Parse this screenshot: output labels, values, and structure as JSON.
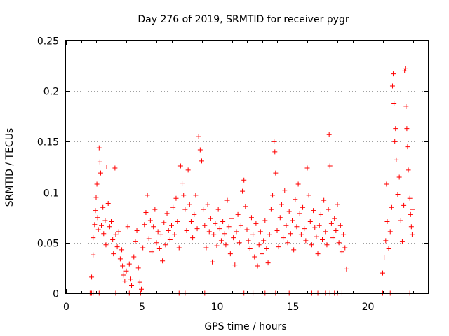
{
  "chart_data": {
    "type": "scatter",
    "title": "Day 276 of 2019, SRMTID for receiver pygr",
    "xlabel": "GPS time / hours",
    "ylabel": "SRMTID / TECUs",
    "xlim": [
      0,
      24
    ],
    "ylim": [
      0,
      0.25
    ],
    "xticks": [
      0,
      5,
      10,
      15,
      20
    ],
    "xtick_labels": [
      "0",
      "5",
      "10",
      "15",
      "20"
    ],
    "yticks": [
      0,
      0.05,
      0.1,
      0.15,
      0.2,
      0.25
    ],
    "ytick_labels": [
      "0",
      "0.05",
      "0.1",
      "0.15",
      "0.2",
      "0.25"
    ],
    "grid": true,
    "marker": "+",
    "color": "#ff0000",
    "series": [
      {
        "name": "SRMTID",
        "points": [
          [
            1.6,
            0.0
          ],
          [
            1.7,
            0.0
          ],
          [
            1.8,
            0.0
          ],
          [
            2.2,
            0.0
          ],
          [
            3.3,
            0.0
          ],
          [
            4.2,
            0.0
          ],
          [
            4.95,
            0.0
          ],
          [
            7.5,
            0.0
          ],
          [
            7.9,
            0.0
          ],
          [
            9.2,
            0.0
          ],
          [
            11.0,
            0.0
          ],
          [
            11.8,
            0.0
          ],
          [
            12.4,
            0.0
          ],
          [
            13.2,
            0.0
          ],
          [
            13.9,
            0.0
          ],
          [
            14.8,
            0.0
          ],
          [
            16.3,
            0.0
          ],
          [
            16.7,
            0.0
          ],
          [
            17.2,
            0.0
          ],
          [
            17.5,
            0.0
          ],
          [
            17.8,
            0.0
          ],
          [
            18.0,
            0.0
          ],
          [
            18.3,
            0.0
          ],
          [
            21.0,
            0.0
          ],
          [
            21.5,
            0.0
          ],
          [
            22.8,
            0.0
          ],
          [
            1.7,
            0.016
          ],
          [
            1.8,
            0.038
          ],
          [
            1.8,
            0.055
          ],
          [
            1.9,
            0.068
          ],
          [
            1.95,
            0.082
          ],
          [
            2.0,
            0.095
          ],
          [
            2.05,
            0.108
          ],
          [
            2.1,
            0.075
          ],
          [
            2.15,
            0.063
          ],
          [
            2.2,
            0.144
          ],
          [
            2.25,
            0.13
          ],
          [
            2.3,
            0.119
          ],
          [
            2.35,
            0.067
          ],
          [
            2.45,
            0.085
          ],
          [
            2.5,
            0.059
          ],
          [
            2.6,
            0.072
          ],
          [
            2.65,
            0.048
          ],
          [
            2.7,
            0.125
          ],
          [
            2.8,
            0.089
          ],
          [
            2.9,
            0.066
          ],
          [
            3.0,
            0.071
          ],
          [
            3.1,
            0.053
          ],
          [
            3.15,
            0.039
          ],
          [
            3.25,
            0.124
          ],
          [
            3.3,
            0.058
          ],
          [
            3.4,
            0.046
          ],
          [
            3.5,
            0.061
          ],
          [
            3.6,
            0.034
          ],
          [
            3.7,
            0.043
          ],
          [
            3.75,
            0.027
          ],
          [
            3.8,
            0.018
          ],
          [
            3.9,
            0.012
          ],
          [
            4.0,
            0.022
          ],
          [
            4.1,
            0.066
          ],
          [
            4.2,
            0.029
          ],
          [
            4.3,
            0.014
          ],
          [
            4.35,
            0.008
          ],
          [
            4.5,
            0.036
          ],
          [
            4.6,
            0.051
          ],
          [
            4.7,
            0.062
          ],
          [
            4.8,
            0.025
          ],
          [
            4.9,
            0.011
          ],
          [
            5.0,
            0.004
          ],
          [
            5.1,
            0.045
          ],
          [
            5.2,
            0.068
          ],
          [
            5.3,
            0.08
          ],
          [
            5.4,
            0.097
          ],
          [
            5.5,
            0.054
          ],
          [
            5.6,
            0.072
          ],
          [
            5.7,
            0.041
          ],
          [
            5.8,
            0.066
          ],
          [
            5.9,
            0.083
          ],
          [
            6.0,
            0.05
          ],
          [
            6.1,
            0.061
          ],
          [
            6.2,
            0.044
          ],
          [
            6.3,
            0.058
          ],
          [
            6.4,
            0.032
          ],
          [
            6.5,
            0.07
          ],
          [
            6.6,
            0.048
          ],
          [
            6.7,
            0.079
          ],
          [
            6.8,
            0.062
          ],
          [
            6.9,
            0.053
          ],
          [
            7.0,
            0.067
          ],
          [
            7.1,
            0.085
          ],
          [
            7.2,
            0.058
          ],
          [
            7.3,
            0.094
          ],
          [
            7.4,
            0.071
          ],
          [
            7.5,
            0.045
          ],
          [
            7.6,
            0.126
          ],
          [
            7.7,
            0.109
          ],
          [
            7.8,
            0.097
          ],
          [
            7.9,
            0.083
          ],
          [
            8.0,
            0.062
          ],
          [
            8.1,
            0.122
          ],
          [
            8.2,
            0.088
          ],
          [
            8.3,
            0.071
          ],
          [
            8.4,
            0.055
          ],
          [
            8.5,
            0.078
          ],
          [
            8.6,
            0.097
          ],
          [
            8.7,
            0.064
          ],
          [
            8.8,
            0.155
          ],
          [
            8.9,
            0.142
          ],
          [
            9.0,
            0.131
          ],
          [
            9.1,
            0.083
          ],
          [
            9.2,
            0.067
          ],
          [
            9.3,
            0.045
          ],
          [
            9.4,
            0.088
          ],
          [
            9.5,
            0.061
          ],
          [
            9.6,
            0.074
          ],
          [
            9.7,
            0.031
          ],
          [
            9.8,
            0.058
          ],
          [
            9.9,
            0.069
          ],
          [
            10.0,
            0.047
          ],
          [
            10.1,
            0.083
          ],
          [
            10.2,
            0.064
          ],
          [
            10.3,
            0.052
          ],
          [
            10.4,
            0.071
          ],
          [
            10.5,
            0.059
          ],
          [
            10.6,
            0.048
          ],
          [
            10.7,
            0.092
          ],
          [
            10.8,
            0.066
          ],
          [
            10.9,
            0.039
          ],
          [
            11.0,
            0.074
          ],
          [
            11.1,
            0.055
          ],
          [
            11.2,
            0.028
          ],
          [
            11.3,
            0.061
          ],
          [
            11.4,
            0.078
          ],
          [
            11.5,
            0.05
          ],
          [
            11.6,
            0.067
          ],
          [
            11.7,
            0.101
          ],
          [
            11.8,
            0.112
          ],
          [
            11.9,
            0.086
          ],
          [
            12.0,
            0.063
          ],
          [
            12.1,
            0.052
          ],
          [
            12.2,
            0.044
          ],
          [
            12.3,
            0.075
          ],
          [
            12.4,
            0.058
          ],
          [
            12.5,
            0.036
          ],
          [
            12.6,
            0.069
          ],
          [
            12.7,
            0.027
          ],
          [
            12.8,
            0.048
          ],
          [
            12.9,
            0.061
          ],
          [
            13.0,
            0.039
          ],
          [
            13.1,
            0.052
          ],
          [
            13.2,
            0.072
          ],
          [
            13.3,
            0.044
          ],
          [
            13.4,
            0.03
          ],
          [
            13.5,
            0.058
          ],
          [
            13.6,
            0.083
          ],
          [
            13.7,
            0.097
          ],
          [
            13.8,
            0.15
          ],
          [
            13.85,
            0.14
          ],
          [
            13.9,
            0.119
          ],
          [
            14.0,
            0.062
          ],
          [
            14.1,
            0.046
          ],
          [
            14.2,
            0.075
          ],
          [
            14.3,
            0.088
          ],
          [
            14.4,
            0.055
          ],
          [
            14.5,
            0.102
          ],
          [
            14.6,
            0.067
          ],
          [
            14.7,
            0.05
          ],
          [
            14.8,
            0.081
          ],
          [
            14.9,
            0.059
          ],
          [
            15.0,
            0.072
          ],
          [
            15.1,
            0.043
          ],
          [
            15.2,
            0.093
          ],
          [
            15.3,
            0.066
          ],
          [
            15.4,
            0.108
          ],
          [
            15.5,
            0.079
          ],
          [
            15.6,
            0.058
          ],
          [
            15.7,
            0.085
          ],
          [
            15.8,
            0.064
          ],
          [
            15.9,
            0.052
          ],
          [
            16.0,
            0.124
          ],
          [
            16.1,
            0.097
          ],
          [
            16.2,
            0.071
          ],
          [
            16.3,
            0.048
          ],
          [
            16.4,
            0.082
          ],
          [
            16.5,
            0.065
          ],
          [
            16.6,
            0.056
          ],
          [
            16.7,
            0.039
          ],
          [
            16.8,
            0.067
          ],
          [
            16.9,
            0.078
          ],
          [
            17.0,
            0.053
          ],
          [
            17.1,
            0.092
          ],
          [
            17.2,
            0.061
          ],
          [
            17.3,
            0.048
          ],
          [
            17.4,
            0.083
          ],
          [
            17.45,
            0.157
          ],
          [
            17.5,
            0.126
          ],
          [
            17.6,
            0.069
          ],
          [
            17.7,
            0.055
          ],
          [
            17.8,
            0.074
          ],
          [
            17.9,
            0.062
          ],
          [
            18.0,
            0.088
          ],
          [
            18.1,
            0.05
          ],
          [
            18.2,
            0.067
          ],
          [
            18.3,
            0.041
          ],
          [
            18.4,
            0.058
          ],
          [
            18.5,
            0.045
          ],
          [
            18.6,
            0.024
          ],
          [
            21.0,
            0.02
          ],
          [
            21.1,
            0.035
          ],
          [
            21.2,
            0.052
          ],
          [
            21.25,
            0.108
          ],
          [
            21.3,
            0.071
          ],
          [
            21.4,
            0.044
          ],
          [
            21.5,
            0.061
          ],
          [
            21.6,
            0.085
          ],
          [
            21.65,
            0.205
          ],
          [
            21.7,
            0.217
          ],
          [
            21.75,
            0.188
          ],
          [
            21.8,
            0.15
          ],
          [
            21.85,
            0.163
          ],
          [
            21.9,
            0.132
          ],
          [
            22.0,
            0.098
          ],
          [
            22.1,
            0.115
          ],
          [
            22.2,
            0.072
          ],
          [
            22.3,
            0.051
          ],
          [
            22.4,
            0.087
          ],
          [
            22.45,
            0.22
          ],
          [
            22.5,
            0.222
          ],
          [
            22.55,
            0.185
          ],
          [
            22.6,
            0.163
          ],
          [
            22.65,
            0.145
          ],
          [
            22.7,
            0.122
          ],
          [
            22.8,
            0.094
          ],
          [
            22.85,
            0.078
          ],
          [
            22.9,
            0.066
          ],
          [
            22.95,
            0.058
          ],
          [
            23.0,
            0.083
          ]
        ]
      }
    ]
  }
}
